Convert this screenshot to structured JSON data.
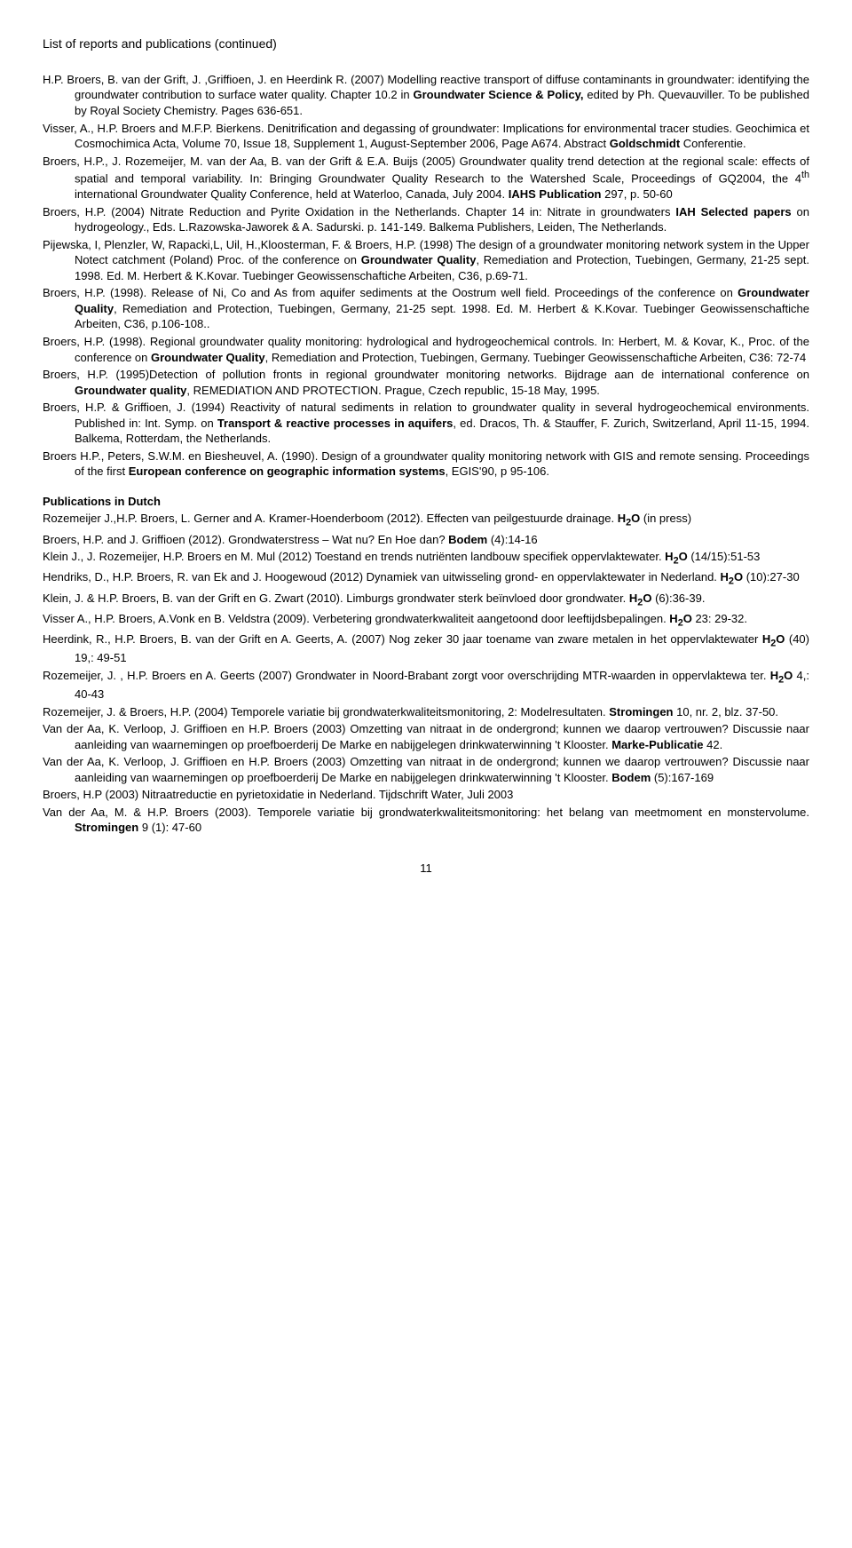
{
  "header": "List of reports and publications (continued)",
  "refs_en": [
    {
      "pre": "H.P. Broers, B. van der Grift, J. ,Griffioen, J. en Heerdink R. (2007) Modelling reactive transport of diffuse contaminants in groundwater: identifying the groundwater contribution to surface water quality. Chapter 10.2 in ",
      "b": "Groundwater Science & Policy,",
      "post": " edited by Ph. Quevauviller. To be published by Royal Society Chemistry. Pages 636-651."
    },
    {
      "pre": "Visser, A., H.P. Broers and M.F.P. Bierkens. Denitrification and degassing of groundwater: Implications for environmental tracer studies. Geochimica et Cosmochimica Acta, Volume 70, Issue 18, Supplement 1, August-September 2006, Page A674. Abstract ",
      "b": "Goldschmidt",
      "post": " Conferentie."
    },
    {
      "pre": "Broers, H.P., J. Rozemeijer, M. van der Aa, B. van der Grift & E.A. Buijs (2005) Groundwater quality trend detection at the regional scale: effects of spatial and temporal variability. In: Bringing Groundwater Quality Research to the Watershed Scale, Proceedings of GQ2004, the 4",
      "sup": "th",
      "mid": " international Groundwater Quality Conference, held at Waterloo, Canada, July 2004. ",
      "b": "IAHS Publication",
      "post": " 297, p. 50-60"
    },
    {
      "pre": "Broers, H.P. (2004) Nitrate Reduction and Pyrite Oxidation in the Netherlands. Chapter 14 in: Nitrate in groundwaters ",
      "b": "IAH Selected papers",
      "post": " on hydrogeology., Eds. L.Razowska-Jaworek & A. Sadurski.  p. 141-149. Balkema Publishers, Leiden, The Netherlands."
    },
    {
      "pre": "Pijewska, I, Plenzler, W, Rapacki,L, Uil, H.,Kloosterman, F. & Broers, H.P. (1998) The design of a groundwater monitoring network system in the Upper Notect catchment (Poland)  Proc. of the conference on ",
      "b": "Groundwater Quality",
      "post": ", Remediation and Protection, Tuebingen, Germany, 21-25 sept. 1998. Ed. M. Herbert & K.Kovar. Tuebinger Geowissenschaftiche Arbeiten, C36, p.69-71."
    },
    {
      "pre": "Broers, H.P. (1998). Release of Ni, Co and As from aquifer sediments at the Oostrum well field. Proceedings of the conference on ",
      "b": "Groundwater Quality",
      "post": ", Remediation and Protection, Tuebingen, Germany, 21-25 sept. 1998. Ed. M. Herbert & K.Kovar. Tuebinger Geowissenschaftiche Arbeiten, C36, p.106-108.."
    },
    {
      "pre": "Broers, H.P. (1998). Regional groundwater quality monitoring: hydrological and hydrogeochemical controls. In: Herbert, M. & Kovar, K., Proc. of the conference on ",
      "b": "Groundwater Quality",
      "post": ", Remediation and Protection, Tuebingen, Germany. Tuebinger Geowissenschaftiche Arbeiten, C36: 72-74"
    },
    {
      "pre": "Broers, H.P. (1995)Detection of pollution fronts in regional groundwater monitoring networks. Bijdrage aan de international conference on ",
      "b": "Groundwater quality",
      "post": ", REMEDIATION AND PROTECTION. Prague, Czech republic, 15-18 May, 1995."
    },
    {
      "pre": "Broers, H.P. & Griffioen, J. (1994) Reactivity of natural sediments in relation to groundwater quality in several hydrogeochemical environments. Published in: Int. Symp. on ",
      "b": "Transport & reactive processes in aquifers",
      "post": ", ed. Dracos, Th. & Stauffer, F. Zurich, Switzerland, April 11-15, 1994. Balkema, Rotterdam, the Netherlands."
    },
    {
      "pre": "Broers H.P., Peters, S.W.M. en Biesheuvel, A. (1990). Design of a groundwater quality monitoring network with GIS and remote sensing. Proceedings of the first ",
      "b": "European conference on geographic information systems",
      "post": ", EGIS'90, p 95-106."
    }
  ],
  "section_nl": "Publications in Dutch",
  "refs_nl": [
    {
      "pre": "Rozemeijer J.,H.P. Broers, L. Gerner and A. Kramer-Hoenderboom (2012). Effecten van peilgestuurde drainage. ",
      "b": "H",
      "sub": "2",
      "b2": "O",
      "post": " (in press)"
    },
    {
      "pre": "Broers, H.P. and J. Griffioen (2012). Grondwaterstress – Wat nu? En Hoe dan? ",
      "b": "Bodem",
      "post": " (4):14-16"
    },
    {
      "pre": "Klein J., J. Rozemeijer, H.P. Broers en M. Mul (2012) Toestand en trends nutriënten landbouw specifiek oppervlaktewater. ",
      "b": "H",
      "sub": "2",
      "b2": "O",
      "post": " (14/15):51-53"
    },
    {
      "pre": "Hendriks, D., H.P. Broers, R. van Ek and J. Hoogewoud (2012) Dynamiek van uitwisseling grond- en oppervlaktewater in Nederland. ",
      "b": "H",
      "sub": "2",
      "b2": "O",
      "post": " (10):27-30"
    },
    {
      "pre": "Klein, J. & H.P. Broers, B. van der Grift en G. Zwart (2010). Limburgs grondwater sterk beïnvloed door grondwater. ",
      "b": "H",
      "sub": "2",
      "b2": "O",
      "post": " (6):36-39."
    },
    {
      "pre": "Visser A., H.P. Broers, A.Vonk en B. Veldstra (2009). Verbetering grondwaterkwaliteit aangetoond door leeftijdsbepalingen. ",
      "b": "H",
      "sub": "2",
      "b2": "O",
      "post": " 23: 29-32."
    },
    {
      "pre": "Heerdink, R., H.P. Broers, B. van der Grift en A. Geerts, A. (2007) Nog zeker 30 jaar toename van zware metalen in het oppervlaktewater ",
      "b": "H",
      "sub": "2",
      "b2": "O",
      "post": " (40) 19,: 49-51"
    },
    {
      "pre": "Rozemeijer, J. , H.P. Broers en A. Geerts (2007) Grondwater in Noord-Brabant zorgt voor overschrijding MTR-waarden in oppervlaktewa ter. ",
      "b": "H",
      "sub": "2",
      "b2": "O",
      "post": " 4,: 40-43"
    },
    {
      "pre": "Rozemeijer, J. & Broers, H.P. (2004) Temporele variatie bij grondwaterkwaliteitsmonitoring, 2: Modelresultaten. ",
      "b": "Stromingen",
      "post": " 10, nr. 2, blz. 37-50."
    },
    {
      "pre": "Van der Aa, K. Verloop, J. Griffioen en H.P. Broers (2003) Omzetting van nitraat in de ondergrond; kunnen we daarop vertrouwen? Discussie naar aanleiding van waarnemingen op proefboerderij De Marke en nabijgelegen drinkwaterwinning 't Klooster. ",
      "b": "Marke-Publicatie",
      "post": " 42."
    },
    {
      "pre": "Van der Aa, K. Verloop, J. Griffioen en H.P. Broers (2003) Omzetting van nitraat in de ondergrond; kunnen we daarop vertrouwen? Discussie naar aanleiding van waarnemingen op proefboerderij De Marke en nabijgelegen drinkwaterwinning 't Klooster. ",
      "b": "Bodem",
      "post": " (5):167-169"
    },
    {
      "pre": "Broers, H.P (2003) Nitraatreductie en pyrietoxidatie in Nederland. Tijdschrift Water, Juli 2003",
      "b": "",
      "post": ""
    },
    {
      "pre": "Van der Aa, M. & H.P. Broers (2003).  Temporele variatie bij grondwaterkwaliteitsmonitoring: het belang van meetmoment en monstervolume. ",
      "b": "Stromingen",
      "post": " 9 (1): 47-60"
    }
  ],
  "page_number": "11"
}
